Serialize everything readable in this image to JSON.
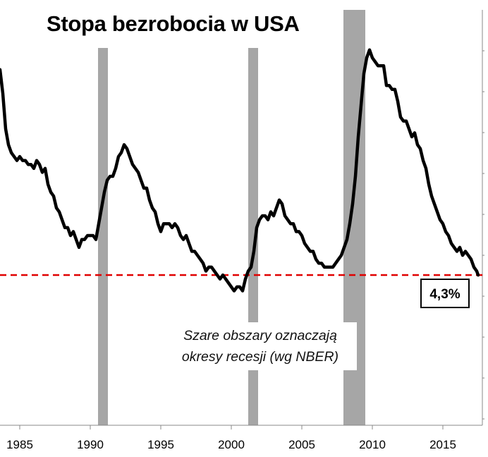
{
  "chart_data": {
    "type": "line",
    "title": "Stopa bezrobocia w USA",
    "annotation": [
      "Szare obszary oznaczają",
      "okresy recesji (wg NBER)"
    ],
    "current_value_label": "4,3%",
    "xlabel": "",
    "ylabel": "",
    "xlim": [
      1983.6,
      2017.8
    ],
    "ylim": [
      2.0,
      11.0
    ],
    "x_ticks": [
      "1985",
      "1990",
      "1995",
      "2000",
      "2005",
      "2010",
      "2015"
    ],
    "reference_line": {
      "value": 4.3,
      "style": "dashed",
      "color": "#e00000"
    },
    "recessions": [
      {
        "start": 1990.55,
        "end": 1991.25
      },
      {
        "start": 2001.2,
        "end": 2001.9
      },
      {
        "start": 2007.95,
        "end": 2009.5
      }
    ],
    "series": [
      {
        "name": "Stopa bezrobocia",
        "color": "#000000",
        "points": [
          [
            1983.6,
            9.5
          ],
          [
            1983.8,
            8.9
          ],
          [
            1984.0,
            8.0
          ],
          [
            1984.2,
            7.6
          ],
          [
            1984.4,
            7.4
          ],
          [
            1984.6,
            7.3
          ],
          [
            1984.8,
            7.2
          ],
          [
            1985.0,
            7.3
          ],
          [
            1985.2,
            7.2
          ],
          [
            1985.4,
            7.2
          ],
          [
            1985.6,
            7.1
          ],
          [
            1985.8,
            7.1
          ],
          [
            1986.0,
            7.0
          ],
          [
            1986.2,
            7.2
          ],
          [
            1986.4,
            7.1
          ],
          [
            1986.6,
            6.9
          ],
          [
            1986.8,
            7.0
          ],
          [
            1987.0,
            6.6
          ],
          [
            1987.2,
            6.4
          ],
          [
            1987.4,
            6.3
          ],
          [
            1987.6,
            6.0
          ],
          [
            1987.8,
            5.9
          ],
          [
            1988.0,
            5.7
          ],
          [
            1988.2,
            5.5
          ],
          [
            1988.4,
            5.5
          ],
          [
            1988.6,
            5.3
          ],
          [
            1988.8,
            5.4
          ],
          [
            1989.0,
            5.2
          ],
          [
            1989.2,
            5.0
          ],
          [
            1989.4,
            5.2
          ],
          [
            1989.6,
            5.2
          ],
          [
            1989.8,
            5.3
          ],
          [
            1990.0,
            5.3
          ],
          [
            1990.2,
            5.3
          ],
          [
            1990.4,
            5.2
          ],
          [
            1990.6,
            5.6
          ],
          [
            1990.8,
            6.0
          ],
          [
            1991.0,
            6.4
          ],
          [
            1991.2,
            6.7
          ],
          [
            1991.4,
            6.8
          ],
          [
            1991.6,
            6.8
          ],
          [
            1991.8,
            7.0
          ],
          [
            1992.0,
            7.3
          ],
          [
            1992.2,
            7.4
          ],
          [
            1992.4,
            7.6
          ],
          [
            1992.6,
            7.5
          ],
          [
            1992.8,
            7.3
          ],
          [
            1993.0,
            7.1
          ],
          [
            1993.2,
            7.0
          ],
          [
            1993.4,
            6.9
          ],
          [
            1993.6,
            6.7
          ],
          [
            1993.8,
            6.5
          ],
          [
            1994.0,
            6.5
          ],
          [
            1994.2,
            6.2
          ],
          [
            1994.4,
            6.0
          ],
          [
            1994.6,
            5.9
          ],
          [
            1994.8,
            5.6
          ],
          [
            1995.0,
            5.4
          ],
          [
            1995.2,
            5.6
          ],
          [
            1995.4,
            5.6
          ],
          [
            1995.6,
            5.6
          ],
          [
            1995.8,
            5.5
          ],
          [
            1996.0,
            5.6
          ],
          [
            1996.2,
            5.5
          ],
          [
            1996.4,
            5.3
          ],
          [
            1996.6,
            5.2
          ],
          [
            1996.8,
            5.3
          ],
          [
            1997.0,
            5.1
          ],
          [
            1997.2,
            4.9
          ],
          [
            1997.4,
            4.9
          ],
          [
            1997.6,
            4.8
          ],
          [
            1997.8,
            4.7
          ],
          [
            1998.0,
            4.6
          ],
          [
            1998.2,
            4.4
          ],
          [
            1998.4,
            4.5
          ],
          [
            1998.6,
            4.5
          ],
          [
            1998.8,
            4.4
          ],
          [
            1999.0,
            4.3
          ],
          [
            1999.2,
            4.2
          ],
          [
            1999.4,
            4.3
          ],
          [
            1999.6,
            4.2
          ],
          [
            1999.8,
            4.1
          ],
          [
            2000.0,
            4.0
          ],
          [
            2000.2,
            3.9
          ],
          [
            2000.4,
            4.0
          ],
          [
            2000.6,
            4.0
          ],
          [
            2000.8,
            3.9
          ],
          [
            2001.0,
            4.2
          ],
          [
            2001.2,
            4.4
          ],
          [
            2001.4,
            4.5
          ],
          [
            2001.6,
            4.9
          ],
          [
            2001.8,
            5.5
          ],
          [
            2002.0,
            5.7
          ],
          [
            2002.2,
            5.8
          ],
          [
            2002.4,
            5.8
          ],
          [
            2002.6,
            5.7
          ],
          [
            2002.8,
            5.9
          ],
          [
            2003.0,
            5.8
          ],
          [
            2003.2,
            6.0
          ],
          [
            2003.4,
            6.2
          ],
          [
            2003.6,
            6.1
          ],
          [
            2003.8,
            5.8
          ],
          [
            2004.0,
            5.7
          ],
          [
            2004.2,
            5.6
          ],
          [
            2004.4,
            5.6
          ],
          [
            2004.6,
            5.4
          ],
          [
            2004.8,
            5.4
          ],
          [
            2005.0,
            5.3
          ],
          [
            2005.2,
            5.1
          ],
          [
            2005.4,
            5.0
          ],
          [
            2005.6,
            4.9
          ],
          [
            2005.8,
            4.9
          ],
          [
            2006.0,
            4.7
          ],
          [
            2006.2,
            4.6
          ],
          [
            2006.4,
            4.6
          ],
          [
            2006.6,
            4.5
          ],
          [
            2006.8,
            4.5
          ],
          [
            2007.0,
            4.5
          ],
          [
            2007.2,
            4.5
          ],
          [
            2007.4,
            4.6
          ],
          [
            2007.6,
            4.7
          ],
          [
            2007.8,
            4.8
          ],
          [
            2008.0,
            5.0
          ],
          [
            2008.2,
            5.2
          ],
          [
            2008.4,
            5.6
          ],
          [
            2008.6,
            6.1
          ],
          [
            2008.8,
            6.8
          ],
          [
            2009.0,
            7.8
          ],
          [
            2009.2,
            8.6
          ],
          [
            2009.4,
            9.4
          ],
          [
            2009.6,
            9.8
          ],
          [
            2009.8,
            10.0
          ],
          [
            2010.0,
            9.8
          ],
          [
            2010.2,
            9.7
          ],
          [
            2010.4,
            9.6
          ],
          [
            2010.6,
            9.6
          ],
          [
            2010.8,
            9.6
          ],
          [
            2011.0,
            9.1
          ],
          [
            2011.2,
            9.1
          ],
          [
            2011.4,
            9.0
          ],
          [
            2011.6,
            9.0
          ],
          [
            2011.8,
            8.7
          ],
          [
            2012.0,
            8.3
          ],
          [
            2012.2,
            8.2
          ],
          [
            2012.4,
            8.2
          ],
          [
            2012.6,
            8.0
          ],
          [
            2012.8,
            7.8
          ],
          [
            2013.0,
            7.9
          ],
          [
            2013.2,
            7.6
          ],
          [
            2013.4,
            7.5
          ],
          [
            2013.6,
            7.2
          ],
          [
            2013.8,
            7.0
          ],
          [
            2014.0,
            6.6
          ],
          [
            2014.2,
            6.3
          ],
          [
            2014.4,
            6.1
          ],
          [
            2014.6,
            5.9
          ],
          [
            2014.8,
            5.7
          ],
          [
            2015.0,
            5.6
          ],
          [
            2015.2,
            5.4
          ],
          [
            2015.4,
            5.3
          ],
          [
            2015.6,
            5.1
          ],
          [
            2015.8,
            5.0
          ],
          [
            2016.0,
            4.9
          ],
          [
            2016.2,
            5.0
          ],
          [
            2016.4,
            4.8
          ],
          [
            2016.6,
            4.9
          ],
          [
            2016.8,
            4.8
          ],
          [
            2017.0,
            4.7
          ],
          [
            2017.2,
            4.5
          ],
          [
            2017.4,
            4.4
          ],
          [
            2017.5,
            4.3
          ]
        ]
      }
    ]
  }
}
